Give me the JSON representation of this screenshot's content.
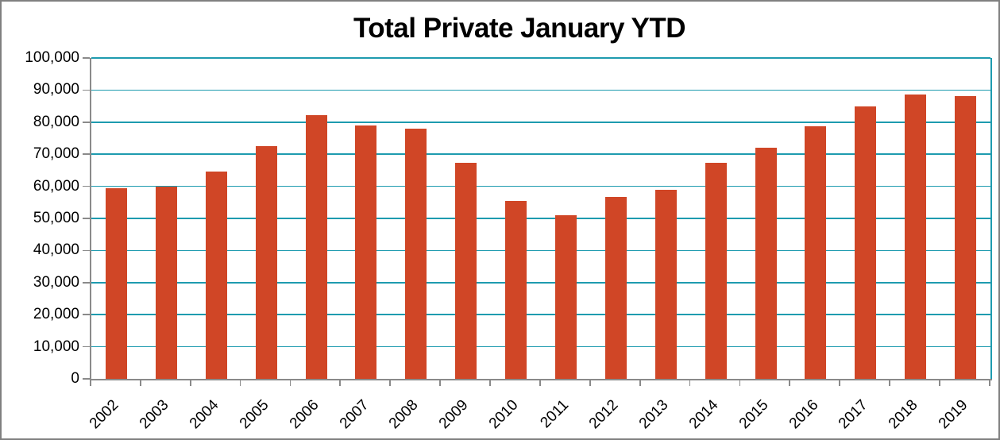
{
  "chart_data": {
    "type": "bar",
    "title": "Total Private January YTD",
    "categories": [
      "2002",
      "2003",
      "2004",
      "2005",
      "2006",
      "2007",
      "2008",
      "2009",
      "2010",
      "2011",
      "2012",
      "2013",
      "2014",
      "2015",
      "2016",
      "2017",
      "2018",
      "2019"
    ],
    "values": [
      59500,
      59900,
      64700,
      72500,
      82300,
      78900,
      77900,
      67300,
      55400,
      51000,
      56600,
      58900,
      67300,
      72000,
      78600,
      85000,
      88500,
      88000
    ],
    "xlabel": "",
    "ylabel": "",
    "ylim": [
      0,
      100000
    ],
    "ytick_step": 10000,
    "ytick_labels": [
      "0",
      "10,000",
      "20,000",
      "30,000",
      "40,000",
      "50,000",
      "60,000",
      "70,000",
      "80,000",
      "90,000",
      "100,000"
    ],
    "grid": "horizontal",
    "legend": "none",
    "colors": {
      "bar": "#D04626",
      "gridline": "#1E9BAF",
      "axis": "#8A8A8A",
      "text": "#000000",
      "frame_border": "#808080"
    }
  }
}
